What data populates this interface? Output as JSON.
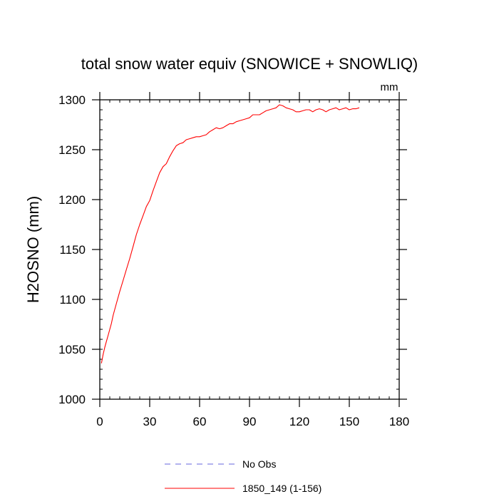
{
  "chart_data": {
    "type": "line",
    "title": "total snow water equiv (SNOWICE + SNOWLIQ)",
    "ylabel": "H2OSNO  (mm)",
    "xlabel": "",
    "units_label": "mm",
    "xlim": [
      0,
      180
    ],
    "ylim": [
      1000,
      1300
    ],
    "xticks": [
      "0",
      "30",
      "60",
      "90",
      "120",
      "150",
      "180"
    ],
    "yticks": [
      "1000",
      "1050",
      "1100",
      "1150",
      "1200",
      "1250",
      "1300"
    ],
    "grid": false,
    "legend_position": "bottom-center",
    "series": [
      {
        "name": "No Obs",
        "color": "#6666dd",
        "style": "dashed",
        "x": [],
        "y": []
      },
      {
        "name": "1850_149 (1-156)",
        "color": "#ff0000",
        "style": "solid",
        "x": [
          1,
          2,
          3,
          4,
          5,
          6,
          7,
          8,
          9,
          10,
          12,
          14,
          16,
          18,
          20,
          22,
          24,
          26,
          28,
          30,
          32,
          34,
          36,
          38,
          40,
          42,
          44,
          46,
          48,
          50,
          52,
          54,
          56,
          58,
          60,
          62,
          64,
          66,
          68,
          70,
          72,
          74,
          76,
          78,
          80,
          82,
          84,
          86,
          88,
          90,
          92,
          94,
          96,
          98,
          100,
          102,
          104,
          106,
          108,
          110,
          112,
          114,
          116,
          118,
          120,
          122,
          124,
          126,
          128,
          130,
          132,
          134,
          136,
          138,
          140,
          142,
          144,
          146,
          148,
          150,
          152,
          154,
          156
        ],
        "y": [
          1036,
          1045,
          1052,
          1058,
          1064,
          1070,
          1076,
          1084,
          1090,
          1096,
          1108,
          1119,
          1130,
          1141,
          1153,
          1165,
          1175,
          1184,
          1193,
          1199,
          1209,
          1218,
          1227,
          1233,
          1236,
          1243,
          1249,
          1254,
          1256,
          1257,
          1260,
          1261,
          1262,
          1263,
          1263,
          1264,
          1265,
          1268,
          1270,
          1272,
          1271,
          1272,
          1274,
          1276,
          1276,
          1278,
          1279,
          1280,
          1281,
          1282,
          1285,
          1285,
          1285,
          1287,
          1289,
          1290,
          1291,
          1292,
          1295,
          1294,
          1292,
          1291,
          1290,
          1288,
          1288,
          1289,
          1290,
          1290,
          1288,
          1290,
          1291,
          1290,
          1288,
          1290,
          1291,
          1292,
          1290,
          1291,
          1292,
          1290,
          1291,
          1291,
          1292
        ]
      }
    ]
  }
}
